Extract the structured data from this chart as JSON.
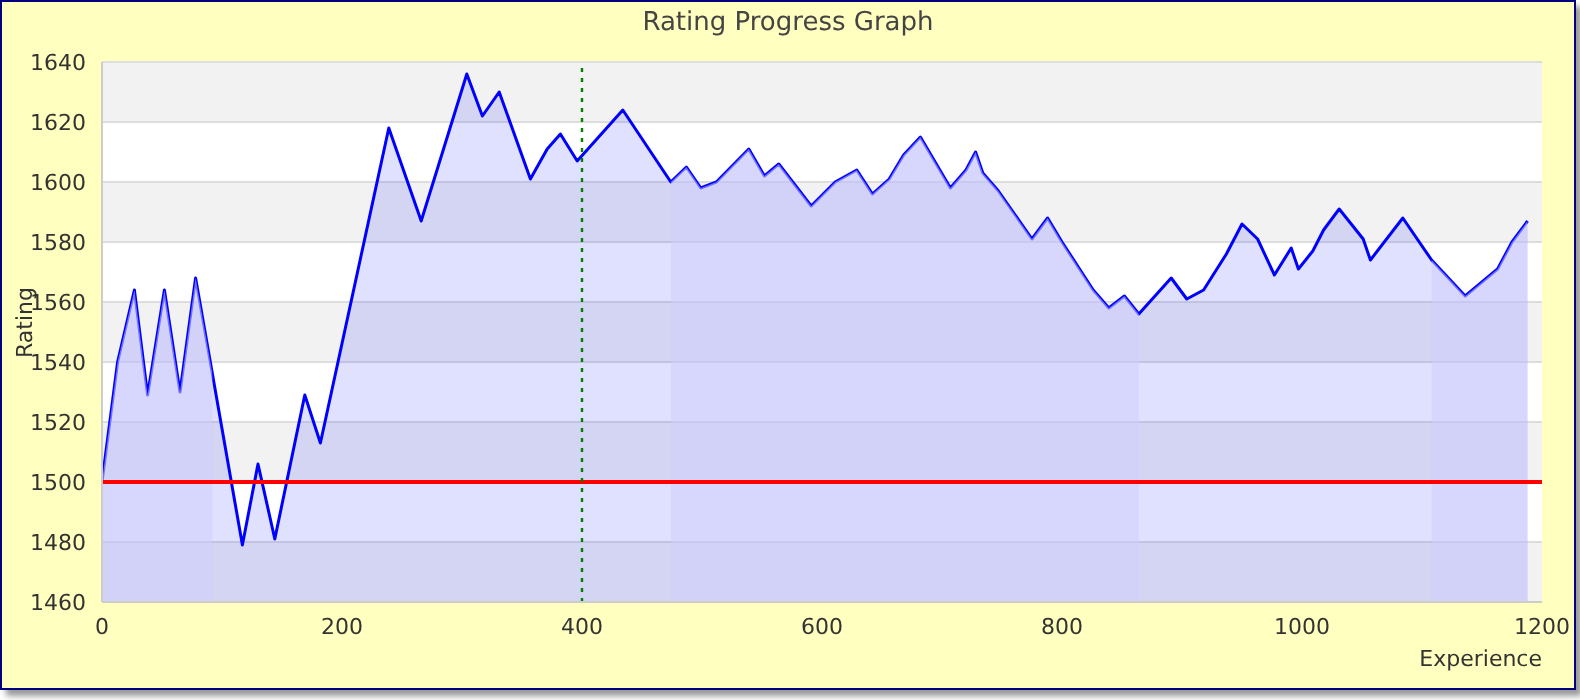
{
  "chart_data": {
    "type": "area",
    "title": "Rating Progress Graph",
    "xlabel": "Experience",
    "ylabel": "Rating",
    "x": [
      0,
      13,
      27,
      38,
      52,
      65,
      78,
      117,
      130,
      144,
      169,
      182,
      239,
      266,
      304,
      317,
      331,
      357,
      371,
      382,
      396,
      434,
      474,
      487,
      499,
      512,
      539,
      552,
      564,
      591,
      611,
      629,
      642,
      656,
      668,
      682,
      707,
      720,
      728,
      734,
      747,
      775,
      788,
      800,
      826,
      839,
      852,
      864,
      891,
      904,
      918,
      937,
      950,
      963,
      977,
      991,
      997,
      1009,
      1018,
      1031,
      1051,
      1057,
      1084,
      1108,
      1136,
      1163,
      1175,
      1188
    ],
    "series": [
      {
        "color": "#0000ff",
        "values": [
          1500,
          1540,
          1564,
          1529,
          1564,
          1530,
          1568,
          1479,
          1506,
          1481,
          1529,
          1513,
          1618,
          1587,
          1636,
          1622,
          1630,
          1601,
          1611,
          1616,
          1607,
          1624,
          1600,
          1605,
          1598,
          1600,
          1611,
          1602,
          1606,
          1592,
          1600,
          1604,
          1596,
          1601,
          1609,
          1615,
          1598,
          1604,
          1610,
          1603,
          1597,
          1581,
          1588,
          1580,
          1564,
          1558,
          1562,
          1556,
          1568,
          1561,
          1564,
          1576,
          1586,
          1581,
          1569,
          1578,
          1571,
          1577,
          1584,
          1591,
          1581,
          1574,
          1588,
          1574,
          1562,
          1571,
          1580,
          1587
        ]
      }
    ],
    "bands": [
      {
        "axis": "x",
        "from": 0,
        "to": 92,
        "color": "#cfcffb"
      },
      {
        "axis": "x",
        "from": 474,
        "to": 864,
        "color": "#cfcffb"
      },
      {
        "axis": "x",
        "from": 1108,
        "to": 1188,
        "color": "#cfcffb"
      }
    ],
    "ref_lines": [
      {
        "axis": "y",
        "value": 1500,
        "color": "#ff0000",
        "line_style": "solid"
      },
      {
        "axis": "x",
        "value": 400,
        "color": "#008000",
        "line_style": "dotted"
      }
    ],
    "xlim": [
      0,
      1200
    ],
    "xticks": [
      0,
      200,
      400,
      600,
      800,
      1000,
      1200
    ],
    "ylim": [
      1460,
      1640
    ],
    "yticks": [
      1460,
      1480,
      1500,
      1520,
      1540,
      1560,
      1580,
      1600,
      1620,
      1640
    ],
    "grid": "y",
    "legend": false,
    "marker": "none",
    "line_style": "solid"
  }
}
